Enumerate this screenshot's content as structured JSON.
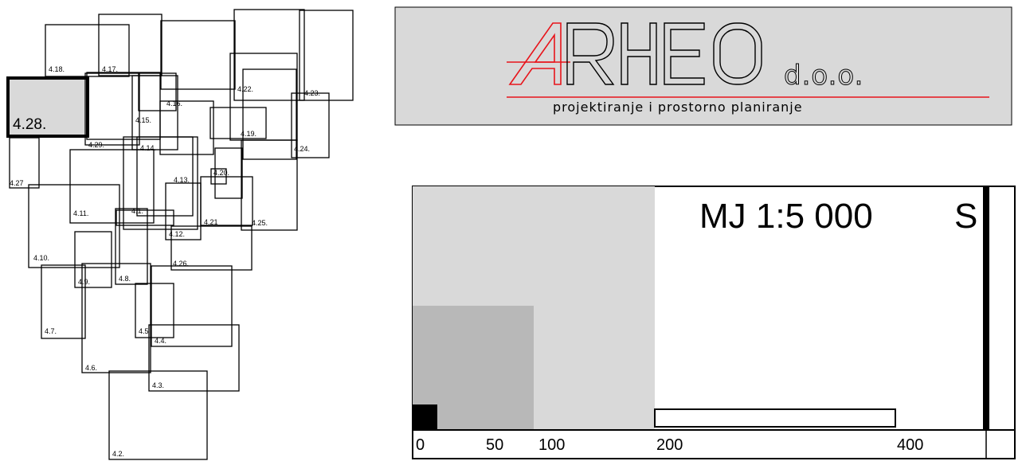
{
  "key_map": {
    "selected_sheet": "4.28.",
    "sheet_labels": [
      "4.2.",
      "4.3.",
      "4.4.",
      "4.5",
      "4.6.",
      "4.7.",
      "4.8.",
      "4.9.",
      "4.10.",
      "4.11.",
      "4.12.",
      "4.13.",
      "4.14.",
      "4.15.",
      "4.16.",
      "4.17.",
      "4.18.",
      "4.19.",
      "4.20.",
      "4.21",
      "4.22.",
      "4.23.",
      "4.24.",
      "4.25.",
      "4.26.",
      "4.27",
      "4.29.",
      "4.1."
    ]
  },
  "logo": {
    "first_letter": "A",
    "rest_letters": "RHEO",
    "suffix": "d.o.o.",
    "tagline": "projektiranje i prostorno planiranje",
    "accent_color": "#e8141b",
    "panel_color": "#d9d9d9"
  },
  "scale_panel": {
    "title": "MJ 1:5 000",
    "north_letter": "S",
    "tick_labels": [
      "0",
      "50",
      "100",
      "200",
      "400"
    ],
    "colors": {
      "light": "#d9d9d9",
      "medium": "#b8b8b8",
      "dark": "#000000"
    }
  }
}
